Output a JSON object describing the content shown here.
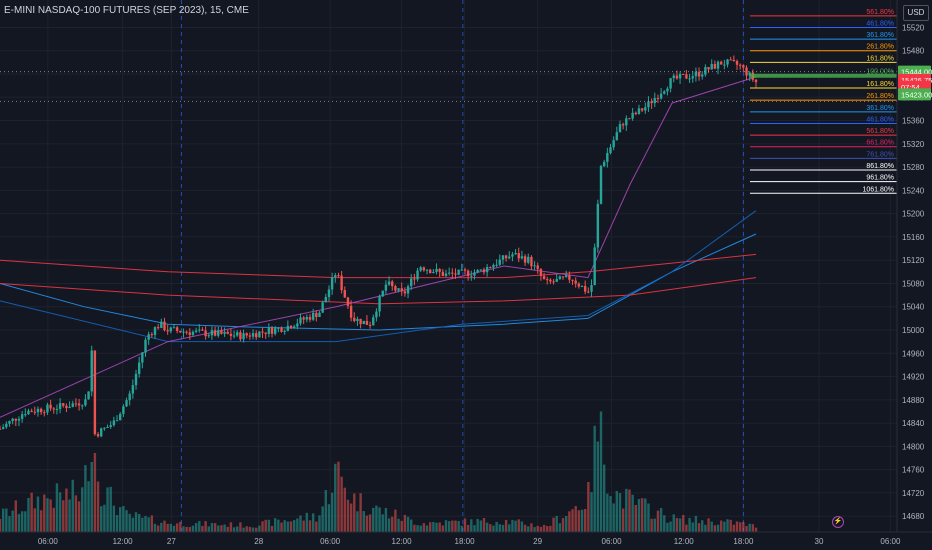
{
  "header": {
    "title": "E-MINI NASDAQ-100 FUTURES (SEP 2023), 15, CME",
    "currency": "USD"
  },
  "colors": {
    "background": "#131722",
    "up": "#26a69a",
    "down": "#ef5350",
    "grid": "#1e222d",
    "session_line": "#2962ff",
    "price_tag_green": "#4caf50",
    "price_tag_red": "#f23645"
  },
  "icons": {
    "flash": "lightning-icon"
  },
  "chart_data": {
    "type": "candlestick",
    "y_range": [
      14670,
      15550
    ],
    "y_ticks": [
      15520,
      15480,
      15440,
      15400,
      15360,
      15320,
      15280,
      15240,
      15200,
      15160,
      15120,
      15080,
      15040,
      15000,
      14960,
      14920,
      14880,
      14840,
      14800,
      14760,
      14720,
      14680
    ],
    "x_ticks": [
      "06:00",
      "12:00",
      "27",
      "28",
      "06:00",
      "12:00",
      "18:00",
      "29",
      "06:00",
      "12:00",
      "18:00",
      "30",
      "06:00"
    ],
    "price_path": [
      {
        "x": 0.0,
        "y": 14830
      },
      {
        "x": 0.03,
        "y": 14860
      },
      {
        "x": 0.08,
        "y": 14870
      },
      {
        "x": 0.105,
        "y": 14880
      },
      {
        "x": 0.108,
        "y": 15010
      },
      {
        "x": 0.113,
        "y": 14820
      },
      {
        "x": 0.135,
        "y": 14840
      },
      {
        "x": 0.155,
        "y": 14890
      },
      {
        "x": 0.175,
        "y": 14990
      },
      {
        "x": 0.19,
        "y": 15010
      },
      {
        "x": 0.2,
        "y": 15000
      },
      {
        "x": 0.24,
        "y": 14995
      },
      {
        "x": 0.29,
        "y": 14990
      },
      {
        "x": 0.34,
        "y": 15005
      },
      {
        "x": 0.38,
        "y": 15030
      },
      {
        "x": 0.4,
        "y": 15100
      },
      {
        "x": 0.42,
        "y": 15020
      },
      {
        "x": 0.44,
        "y": 15010
      },
      {
        "x": 0.46,
        "y": 15080
      },
      {
        "x": 0.48,
        "y": 15060
      },
      {
        "x": 0.5,
        "y": 15110
      },
      {
        "x": 0.53,
        "y": 15095
      },
      {
        "x": 0.57,
        "y": 15100
      },
      {
        "x": 0.61,
        "y": 15130
      },
      {
        "x": 0.63,
        "y": 15120
      },
      {
        "x": 0.65,
        "y": 15080
      },
      {
        "x": 0.68,
        "y": 15090
      },
      {
        "x": 0.7,
        "y": 15065
      },
      {
        "x": 0.705,
        "y": 15080
      },
      {
        "x": 0.715,
        "y": 15280
      },
      {
        "x": 0.74,
        "y": 15355
      },
      {
        "x": 0.77,
        "y": 15385
      },
      {
        "x": 0.8,
        "y": 15430
      },
      {
        "x": 0.83,
        "y": 15440
      },
      {
        "x": 0.86,
        "y": 15460
      },
      {
        "x": 0.88,
        "y": 15455
      },
      {
        "x": 0.9,
        "y": 15426
      }
    ],
    "volume_path": [
      {
        "x": 0.0,
        "v": 0.15
      },
      {
        "x": 0.05,
        "v": 0.3
      },
      {
        "x": 0.1,
        "v": 0.35
      },
      {
        "x": 0.108,
        "v": 0.95
      },
      {
        "x": 0.12,
        "v": 0.4
      },
      {
        "x": 0.15,
        "v": 0.15
      },
      {
        "x": 0.2,
        "v": 0.08
      },
      {
        "x": 0.3,
        "v": 0.06
      },
      {
        "x": 0.38,
        "v": 0.15
      },
      {
        "x": 0.4,
        "v": 0.55
      },
      {
        "x": 0.42,
        "v": 0.3
      },
      {
        "x": 0.45,
        "v": 0.2
      },
      {
        "x": 0.5,
        "v": 0.08
      },
      {
        "x": 0.6,
        "v": 0.1
      },
      {
        "x": 0.65,
        "v": 0.05
      },
      {
        "x": 0.7,
        "v": 0.3
      },
      {
        "x": 0.712,
        "v": 0.95
      },
      {
        "x": 0.73,
        "v": 0.35
      },
      {
        "x": 0.76,
        "v": 0.25
      },
      {
        "x": 0.8,
        "v": 0.12
      },
      {
        "x": 0.88,
        "v": 0.08
      },
      {
        "x": 0.9,
        "v": 0.05
      }
    ],
    "moving_averages": [
      {
        "color": "#2196f3",
        "points": [
          {
            "x": 0.0,
            "y": 15080
          },
          {
            "x": 0.1,
            "y": 15040
          },
          {
            "x": 0.2,
            "y": 15010
          },
          {
            "x": 0.3,
            "y": 15005
          },
          {
            "x": 0.45,
            "y": 15000
          },
          {
            "x": 0.6,
            "y": 15010
          },
          {
            "x": 0.7,
            "y": 15020
          },
          {
            "x": 0.8,
            "y": 15100
          },
          {
            "x": 0.9,
            "y": 15165
          }
        ]
      },
      {
        "color": "#f23645",
        "points": [
          {
            "x": 0.0,
            "y": 15120
          },
          {
            "x": 0.2,
            "y": 15100
          },
          {
            "x": 0.4,
            "y": 15090
          },
          {
            "x": 0.6,
            "y": 15090
          },
          {
            "x": 0.7,
            "y": 15100
          },
          {
            "x": 0.8,
            "y": 15115
          },
          {
            "x": 0.9,
            "y": 15130
          }
        ]
      },
      {
        "color": "#f23645",
        "points": [
          {
            "x": 0.0,
            "y": 15080
          },
          {
            "x": 0.2,
            "y": 15060
          },
          {
            "x": 0.45,
            "y": 15045
          },
          {
            "x": 0.6,
            "y": 15050
          },
          {
            "x": 0.75,
            "y": 15060
          },
          {
            "x": 0.9,
            "y": 15090
          }
        ]
      },
      {
        "color": "#1565c0",
        "points": [
          {
            "x": 0.0,
            "y": 15050
          },
          {
            "x": 0.2,
            "y": 14980
          },
          {
            "x": 0.4,
            "y": 14980
          },
          {
            "x": 0.55,
            "y": 15010
          },
          {
            "x": 0.7,
            "y": 15025
          },
          {
            "x": 0.8,
            "y": 15100
          },
          {
            "x": 0.9,
            "y": 15205
          }
        ]
      },
      {
        "color": "#ab47bc",
        "points": [
          {
            "x": 0.0,
            "y": 14850
          },
          {
            "x": 0.2,
            "y": 14980
          },
          {
            "x": 0.4,
            "y": 15040
          },
          {
            "x": 0.6,
            "y": 15110
          },
          {
            "x": 0.7,
            "y": 15090
          },
          {
            "x": 0.75,
            "y": 15250
          },
          {
            "x": 0.8,
            "y": 15390
          },
          {
            "x": 0.9,
            "y": 15435
          }
        ]
      }
    ],
    "fib_levels": [
      {
        "label": "561.80%",
        "price": 15540,
        "color": "#f23645"
      },
      {
        "label": "461.80%",
        "price": 15520,
        "color": "#2962ff"
      },
      {
        "label": "361.80%",
        "price": 15500,
        "color": "#2196f3"
      },
      {
        "label": "261.80%",
        "price": 15480,
        "color": "#ff9800"
      },
      {
        "label": "161.80%",
        "price": 15460,
        "color": "#fdd835"
      },
      {
        "label": "100.00%",
        "price": 15437,
        "color": "#4caf50"
      },
      {
        "label": "161.80%",
        "price": 15416,
        "color": "#fdd835"
      },
      {
        "label": "261.80%",
        "price": 15395,
        "color": "#ff9800"
      },
      {
        "label": "361.80%",
        "price": 15375,
        "color": "#2196f3"
      },
      {
        "label": "461.80%",
        "price": 15355,
        "color": "#2962ff"
      },
      {
        "label": "561.80%",
        "price": 15335,
        "color": "#f23645"
      },
      {
        "label": "661.80%",
        "price": 15315,
        "color": "#e91e63"
      },
      {
        "label": "761.80%",
        "price": 15295,
        "color": "#3f51b5"
      },
      {
        "label": "861.80%",
        "price": 15275,
        "color": "#ffffff"
      },
      {
        "label": "961.80%",
        "price": 15255,
        "color": "#ffffff"
      },
      {
        "label": "1061.80%",
        "price": 15235,
        "color": "#ffffff"
      }
    ],
    "price_tags": [
      {
        "label": "15444.00",
        "price": 15444,
        "color": "#4caf50"
      },
      {
        "label": "15426.75",
        "price": 15430,
        "color": "#f23645"
      },
      {
        "label": "07:54",
        "price": 15418,
        "color": "#f23645"
      },
      {
        "label": "15423.00",
        "price": 15405,
        "color": "#4caf50"
      }
    ]
  }
}
